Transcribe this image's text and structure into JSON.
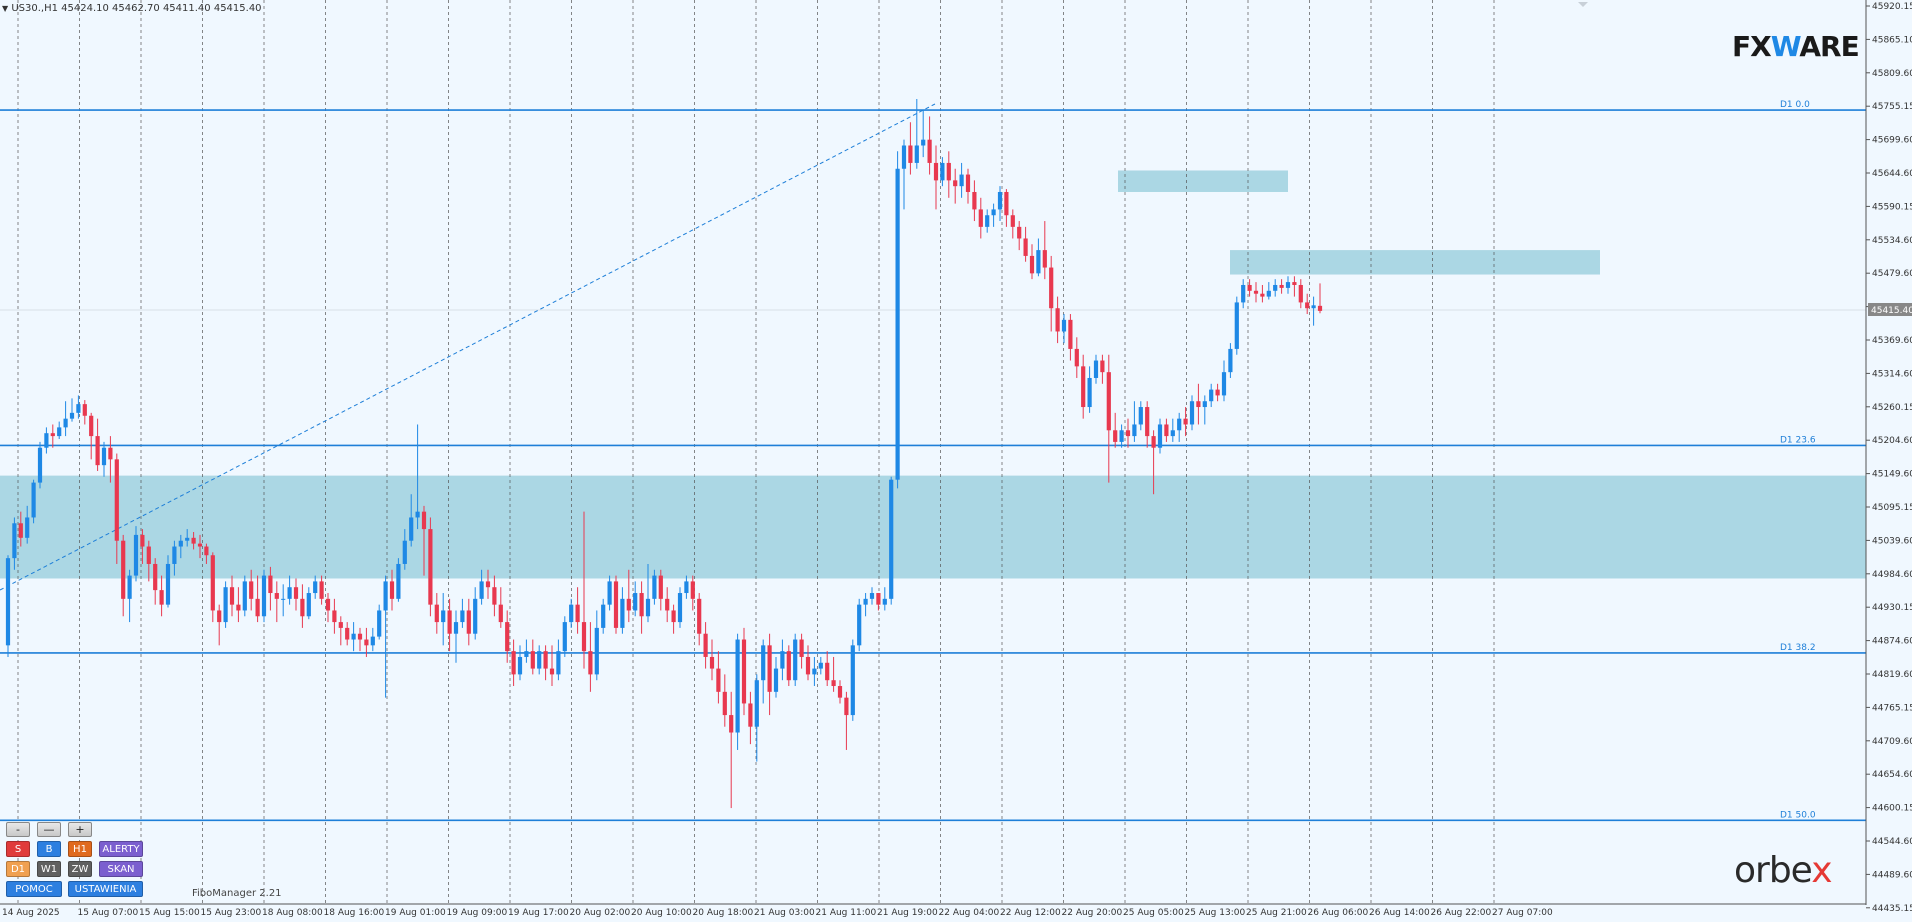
{
  "header": {
    "dropdown_icon": "triangle-down-icon",
    "symbol_info": "US30.,H1  45424.10 45462.70 45411.40 45415.40"
  },
  "branding": {
    "fxware_logo": "FXWARE",
    "orbex_logo": "orbex",
    "orbex_x_color": "#e53935"
  },
  "controls": {
    "zoom_minus": "-",
    "zoom_dash": "—",
    "zoom_plus": "+",
    "buttons": [
      {
        "label": "S",
        "color": "#e03b3b"
      },
      {
        "label": "B",
        "color": "#2d7fe0"
      },
      {
        "label": "H1",
        "color": "#e06a1e"
      },
      {
        "label": "ALERTY",
        "color": "#7b5fcf"
      },
      {
        "label": "D1",
        "color": "#f0a050"
      },
      {
        "label": "W1",
        "color": "#606060"
      },
      {
        "label": "ZW",
        "color": "#606060"
      },
      {
        "label": "SKAN",
        "color": "#7b5fcf"
      },
      {
        "label": "POMOC",
        "color": "#2d7fe0"
      },
      {
        "label": "USTAWIENIA",
        "color": "#2d7fe0"
      }
    ],
    "fibo_manager": "FiboManager 2.21"
  },
  "colors": {
    "background": "#f0f8ff",
    "bull": "#1e88e5",
    "bear": "#e8384f",
    "zone": "#a7d5e3",
    "fibo_line": "#1e7fd8"
  },
  "chart_data": {
    "type": "candlestick",
    "symbol": "US30.",
    "timeframe": "H1",
    "current_ohlc": {
      "open": 45424.1,
      "high": 45462.7,
      "low": 45411.4,
      "close": 45415.4
    },
    "current_price_label": "45415.40",
    "ylim": [
      44407,
      45940
    ],
    "y_ticks": [
      "45920.15",
      "45865.10",
      "45809.60",
      "45755.15",
      "45699.60",
      "45644.60",
      "45590.15",
      "45534.60",
      "45479.60",
      "45425.15",
      "45369.60",
      "45314.60",
      "45260.15",
      "45204.60",
      "45149.60",
      "45095.15",
      "45039.60",
      "44984.60",
      "44930.15",
      "44874.60",
      "44819.60",
      "44765.15",
      "44709.60",
      "44654.60",
      "44600.15",
      "44544.60",
      "44489.60",
      "44435.15"
    ],
    "x_labels": [
      "14 Aug 2025",
      "15 Aug 07:00",
      "15 Aug 15:00",
      "15 Aug 23:00",
      "18 Aug 08:00",
      "18 Aug 16:00",
      "19 Aug 01:00",
      "19 Aug 09:00",
      "19 Aug 17:00",
      "20 Aug 02:00",
      "20 Aug 10:00",
      "20 Aug 18:00",
      "21 Aug 03:00",
      "21 Aug 11:00",
      "21 Aug 19:00",
      "22 Aug 04:00",
      "22 Aug 12:00",
      "22 Aug 20:00",
      "25 Aug 05:00",
      "25 Aug 13:00",
      "25 Aug 21:00",
      "26 Aug 06:00",
      "26 Aug 14:00",
      "26 Aug 22:00",
      "27 Aug 07:00"
    ],
    "fib_levels": [
      {
        "label": "D1 0.0",
        "price": 45761
      },
      {
        "label": "D1 23.6",
        "price": 45184
      },
      {
        "label": "D1 38.2",
        "price": 44827
      },
      {
        "label": "D1 50.0",
        "price": 44539
      }
    ],
    "zones": [
      {
        "price_top": 45132,
        "price_bottom": 44955
      },
      {
        "price_top": 45657,
        "price_bottom": 45620
      },
      {
        "price_top": 45520,
        "price_bottom": 45478
      }
    ],
    "candles": [
      [
        44840,
        44990,
        44820,
        44995
      ],
      [
        44990,
        45050,
        44970,
        45060
      ],
      [
        45050,
        45025,
        45010,
        45070
      ],
      [
        45025,
        45060,
        45015,
        45080
      ],
      [
        45060,
        45120,
        45050,
        45125
      ],
      [
        45120,
        45180,
        45110,
        45190
      ],
      [
        45180,
        45205,
        45170,
        45215
      ],
      [
        45205,
        45200,
        45180,
        45220
      ],
      [
        45200,
        45215,
        45195,
        45225
      ],
      [
        45215,
        45230,
        45200,
        45260
      ],
      [
        45230,
        45240,
        45225,
        45265
      ],
      [
        45240,
        45255,
        45230,
        45270
      ],
      [
        45255,
        45235,
        45220,
        45262
      ],
      [
        45235,
        45200,
        45160,
        45240
      ],
      [
        45200,
        45150,
        45140,
        45230
      ],
      [
        45150,
        45180,
        45130,
        45190
      ],
      [
        45180,
        45160,
        45120,
        45200
      ],
      [
        45160,
        45020,
        44980,
        45170
      ],
      [
        45020,
        44920,
        44890,
        45030
      ],
      [
        44920,
        44960,
        44880,
        44970
      ],
      [
        44960,
        45030,
        44950,
        45045
      ],
      [
        45030,
        45010,
        44980,
        45040
      ],
      [
        45010,
        44980,
        44950,
        45020
      ],
      [
        44980,
        44935,
        44910,
        44990
      ],
      [
        44935,
        44910,
        44890,
        44960
      ],
      [
        44910,
        44980,
        44905,
        44995
      ],
      [
        44980,
        45010,
        44960,
        45020
      ],
      [
        45010,
        45020,
        44990,
        45030
      ],
      [
        45020,
        45025,
        45010,
        45040
      ],
      [
        45025,
        45015,
        45005,
        45035
      ],
      [
        45015,
        45010,
        44990,
        45030
      ],
      [
        45010,
        44995,
        44980,
        45015
      ],
      [
        44995,
        44900,
        44880,
        45000
      ],
      [
        44900,
        44880,
        44840,
        44910
      ],
      [
        44880,
        44940,
        44870,
        44950
      ],
      [
        44940,
        44910,
        44890,
        44960
      ],
      [
        44910,
        44900,
        44880,
        44940
      ],
      [
        44900,
        44950,
        44890,
        44960
      ],
      [
        44950,
        44920,
        44900,
        44970
      ],
      [
        44920,
        44890,
        44880,
        44960
      ],
      [
        44890,
        44960,
        44880,
        44970
      ],
      [
        44960,
        44930,
        44900,
        44975
      ],
      [
        44930,
        44920,
        44880,
        44950
      ],
      [
        44920,
        44920,
        44890,
        44945
      ],
      [
        44920,
        44940,
        44910,
        44960
      ],
      [
        44940,
        44920,
        44900,
        44955
      ],
      [
        44920,
        44890,
        44870,
        44945
      ],
      [
        44890,
        44930,
        44885,
        44940
      ],
      [
        44930,
        44950,
        44920,
        44960
      ],
      [
        44950,
        44920,
        44910,
        44960
      ],
      [
        44920,
        44900,
        44880,
        44930
      ],
      [
        44900,
        44880,
        44860,
        44920
      ],
      [
        44880,
        44870,
        44840,
        44890
      ],
      [
        44870,
        44850,
        44840,
        44880
      ],
      [
        44850,
        44860,
        44830,
        44880
      ],
      [
        44860,
        44850,
        44830,
        44870
      ],
      [
        44850,
        44840,
        44820,
        44870
      ],
      [
        44840,
        44855,
        44830,
        44870
      ],
      [
        44855,
        44900,
        44850,
        44910
      ],
      [
        44900,
        44950,
        44750,
        44960
      ],
      [
        44950,
        44920,
        44900,
        44970
      ],
      [
        44920,
        44980,
        44915,
        44990
      ],
      [
        44980,
        45020,
        44970,
        45040
      ],
      [
        45020,
        45060,
        45010,
        45100
      ],
      [
        45060,
        45070,
        45040,
        45220
      ],
      [
        45070,
        45040,
        44960,
        45080
      ],
      [
        45040,
        44910,
        44890,
        45060
      ],
      [
        44910,
        44880,
        44860,
        44930
      ],
      [
        44880,
        44900,
        44840,
        44930
      ],
      [
        44900,
        44860,
        44830,
        44920
      ],
      [
        44860,
        44880,
        44810,
        44900
      ],
      [
        44880,
        44900,
        44870,
        44920
      ],
      [
        44900,
        44860,
        44840,
        44920
      ],
      [
        44860,
        44920,
        44850,
        44940
      ],
      [
        44920,
        44950,
        44910,
        44970
      ],
      [
        44950,
        44940,
        44920,
        44970
      ],
      [
        44940,
        44910,
        44890,
        44960
      ],
      [
        44910,
        44880,
        44870,
        44940
      ],
      [
        44880,
        44830,
        44810,
        44900
      ],
      [
        44830,
        44790,
        44770,
        44850
      ],
      [
        44790,
        44820,
        44780,
        44840
      ],
      [
        44820,
        44830,
        44810,
        44850
      ],
      [
        44830,
        44800,
        44790,
        44850
      ],
      [
        44800,
        44830,
        44790,
        44840
      ],
      [
        44830,
        44800,
        44780,
        44840
      ],
      [
        44800,
        44790,
        44770,
        44840
      ],
      [
        44790,
        44830,
        44780,
        44850
      ],
      [
        44830,
        44880,
        44820,
        44890
      ],
      [
        44880,
        44910,
        44870,
        44920
      ],
      [
        44910,
        44880,
        44860,
        44940
      ],
      [
        44880,
        44830,
        44800,
        45070
      ],
      [
        44830,
        44790,
        44760,
        44880
      ],
      [
        44790,
        44870,
        44780,
        44900
      ],
      [
        44870,
        44910,
        44860,
        44920
      ],
      [
        44910,
        44950,
        44900,
        44960
      ],
      [
        44950,
        44870,
        44860,
        44960
      ],
      [
        44870,
        44920,
        44860,
        44940
      ],
      [
        44920,
        44900,
        44880,
        44970
      ],
      [
        44900,
        44930,
        44890,
        44950
      ],
      [
        44930,
        44890,
        44860,
        44950
      ],
      [
        44890,
        44920,
        44880,
        44980
      ],
      [
        44920,
        44960,
        44910,
        44970
      ],
      [
        44960,
        44920,
        44900,
        44970
      ],
      [
        44920,
        44900,
        44880,
        44940
      ],
      [
        44900,
        44880,
        44860,
        44910
      ],
      [
        44880,
        44930,
        44870,
        44940
      ],
      [
        44930,
        44950,
        44920,
        44960
      ],
      [
        44950,
        44920,
        44900,
        44960
      ],
      [
        44920,
        44860,
        44840,
        44930
      ],
      [
        44860,
        44820,
        44800,
        44880
      ],
      [
        44820,
        44800,
        44780,
        44850
      ],
      [
        44800,
        44760,
        44740,
        44830
      ],
      [
        44760,
        44720,
        44700,
        44790
      ],
      [
        44720,
        44690,
        44560,
        44760
      ],
      [
        44690,
        44850,
        44660,
        44860
      ],
      [
        44850,
        44740,
        44720,
        44870
      ],
      [
        44740,
        44700,
        44670,
        44760
      ],
      [
        44700,
        44780,
        44640,
        44790
      ],
      [
        44780,
        44840,
        44740,
        44850
      ],
      [
        44840,
        44760,
        44720,
        44860
      ],
      [
        44760,
        44800,
        44750,
        44820
      ],
      [
        44800,
        44830,
        44780,
        44850
      ],
      [
        44830,
        44780,
        44770,
        44840
      ],
      [
        44780,
        44850,
        44770,
        44860
      ],
      [
        44850,
        44820,
        44800,
        44860
      ],
      [
        44820,
        44790,
        44780,
        44840
      ],
      [
        44790,
        44800,
        44770,
        44820
      ],
      [
        44800,
        44810,
        44790,
        44820
      ],
      [
        44810,
        44780,
        44770,
        44830
      ],
      [
        44780,
        44770,
        44760,
        44820
      ],
      [
        44770,
        44750,
        44740,
        44780
      ],
      [
        44750,
        44720,
        44660,
        44760
      ],
      [
        44720,
        44840,
        44710,
        44850
      ],
      [
        44840,
        44910,
        44830,
        44920
      ],
      [
        44910,
        44920,
        44890,
        44930
      ],
      [
        44920,
        44930,
        44910,
        44940
      ],
      [
        44930,
        44910,
        44900,
        44930
      ],
      [
        44910,
        44920,
        44900,
        44940
      ],
      [
        44920,
        45125,
        44910,
        45130
      ],
      [
        45125,
        45660,
        45110,
        45690
      ],
      [
        45660,
        45700,
        45590,
        45710
      ],
      [
        45700,
        45670,
        45650,
        45740
      ],
      [
        45670,
        45700,
        45660,
        45780
      ],
      [
        45700,
        45710,
        45680,
        45760
      ],
      [
        45710,
        45670,
        45650,
        45750
      ],
      [
        45670,
        45640,
        45590,
        45700
      ],
      [
        45640,
        45670,
        45630,
        45680
      ],
      [
        45670,
        45640,
        45610,
        45690
      ],
      [
        45640,
        45630,
        45600,
        45660
      ],
      [
        45630,
        45650,
        45610,
        45670
      ],
      [
        45650,
        45620,
        45600,
        45660
      ],
      [
        45620,
        45590,
        45570,
        45640
      ],
      [
        45590,
        45560,
        45540,
        45610
      ],
      [
        45560,
        45580,
        45550,
        45590
      ],
      [
        45580,
        45590,
        45560,
        45600
      ],
      [
        45590,
        45620,
        45570,
        45630
      ],
      [
        45620,
        45580,
        45560,
        45625
      ],
      [
        45580,
        45560,
        45540,
        45590
      ],
      [
        45560,
        45540,
        45520,
        45570
      ],
      [
        45540,
        45510,
        45500,
        45560
      ],
      [
        45510,
        45480,
        45470,
        45530
      ],
      [
        45480,
        45520,
        45475,
        45540
      ],
      [
        45520,
        45490,
        45470,
        45570
      ],
      [
        45490,
        45420,
        45380,
        45510
      ],
      [
        45420,
        45380,
        45360,
        45440
      ],
      [
        45380,
        45400,
        45360,
        45410
      ],
      [
        45400,
        45350,
        45330,
        45410
      ],
      [
        45350,
        45320,
        45300,
        45370
      ],
      [
        45320,
        45250,
        45230,
        45340
      ],
      [
        45250,
        45300,
        45240,
        45320
      ],
      [
        45300,
        45330,
        45290,
        45340
      ],
      [
        45330,
        45310,
        45290,
        45340
      ],
      [
        45310,
        45210,
        45120,
        45340
      ],
      [
        45210,
        45190,
        45180,
        45240
      ],
      [
        45190,
        45210,
        45180,
        45220
      ],
      [
        45210,
        45200,
        45180,
        45230
      ],
      [
        45200,
        45220,
        45190,
        45260
      ],
      [
        45220,
        45250,
        45210,
        45260
      ],
      [
        45250,
        45200,
        45180,
        45260
      ],
      [
        45200,
        45180,
        45100,
        45210
      ],
      [
        45180,
        45220,
        45170,
        45230
      ],
      [
        45220,
        45200,
        45190,
        45230
      ],
      [
        45200,
        45210,
        45190,
        45230
      ],
      [
        45210,
        45230,
        45190,
        45240
      ],
      [
        45230,
        45220,
        45200,
        45250
      ],
      [
        45220,
        45260,
        45210,
        45270
      ],
      [
        45260,
        45250,
        45220,
        45290
      ],
      [
        45250,
        45260,
        45220,
        45270
      ],
      [
        45260,
        45280,
        45250,
        45290
      ],
      [
        45280,
        45270,
        45260,
        45290
      ],
      [
        45270,
        45310,
        45260,
        45330
      ],
      [
        45310,
        45350,
        45300,
        45360
      ],
      [
        45350,
        45430,
        45340,
        45440
      ],
      [
        45430,
        45460,
        45420,
        45470
      ],
      [
        45460,
        45450,
        45440,
        45470
      ],
      [
        45450,
        45445,
        45430,
        45465
      ],
      [
        45445,
        45440,
        45430,
        45460
      ],
      [
        45440,
        45450,
        45435,
        45465
      ],
      [
        45450,
        45460,
        45440,
        45470
      ],
      [
        45460,
        45455,
        45445,
        45470
      ],
      [
        45455,
        45465,
        45445,
        45475
      ],
      [
        45465,
        45460,
        45440,
        45475
      ],
      [
        45460,
        45430,
        45420,
        45470
      ],
      [
        45430,
        45420,
        45410,
        45445
      ],
      [
        45420,
        45425,
        45390,
        45440
      ],
      [
        45424.1,
        45415.4,
        45411.4,
        45462.7
      ]
    ]
  }
}
